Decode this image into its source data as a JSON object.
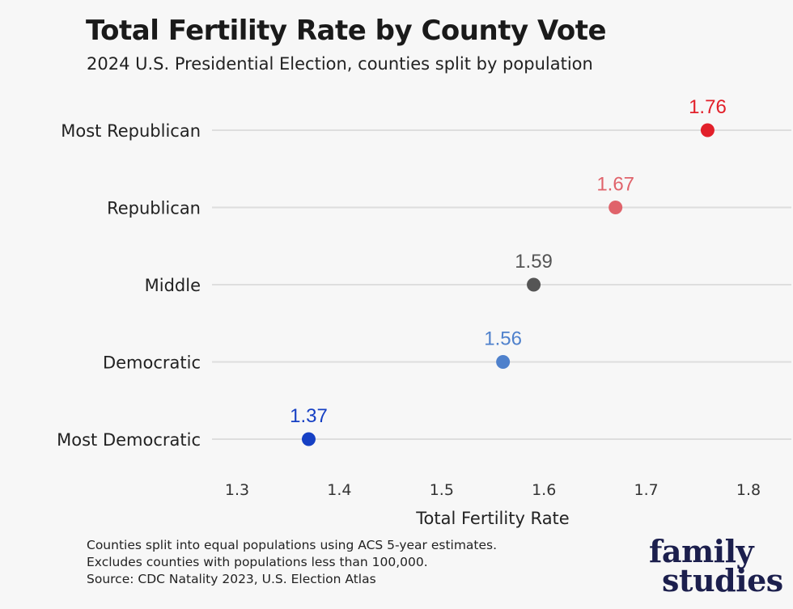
{
  "header": {
    "title": "Total Fertility Rate by County Vote",
    "subtitle": "2024 U.S. Presidential Election, counties split by population"
  },
  "chart_data": {
    "type": "scatter",
    "title": "Total Fertility Rate by County Vote",
    "subtitle": "2024 U.S. Presidential Election, counties split by population",
    "xlabel": "Total Fertility Rate",
    "ylabel": "",
    "xlim": [
      1.3,
      1.8
    ],
    "x_ticks": [
      "1.3",
      "1.4",
      "1.5",
      "1.6",
      "1.7",
      "1.8"
    ],
    "grid": "horizontal",
    "categories": [
      "Most Republican",
      "Republican",
      "Middle",
      "Democratic",
      "Most Democratic"
    ],
    "values": [
      1.76,
      1.67,
      1.59,
      1.56,
      1.37
    ],
    "value_labels": [
      "1.76",
      "1.67",
      "1.59",
      "1.56",
      "1.37"
    ],
    "colors": [
      "#e2202a",
      "#e0636b",
      "#555555",
      "#4f81cc",
      "#1640c4"
    ]
  },
  "footer": {
    "notes": [
      "Counties split into equal populations using ACS 5-year estimates.",
      "Excludes counties with populations less than 100,000.",
      "Source: CDC Natality 2023, U.S. Election Atlas"
    ],
    "logo_line1": "family",
    "logo_line2": "studies"
  },
  "colors": {
    "background": "#f7f7f7",
    "gridline": "#dedede",
    "text": "#1a1a1a",
    "logo": "#1c1f4d"
  }
}
